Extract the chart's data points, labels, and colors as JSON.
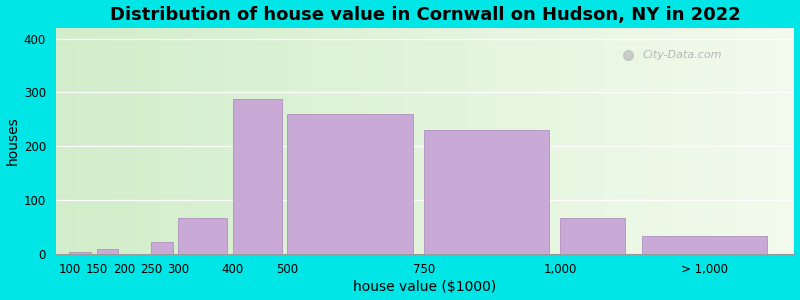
{
  "title": "Distribution of house value in Cornwall on Hudson, NY in 2022",
  "xlabel": "house value ($1000)",
  "ylabel": "houses",
  "bar_lefts": [
    100,
    150,
    200,
    250,
    300,
    400,
    500,
    750,
    1000,
    1150
  ],
  "bar_widths": [
    40,
    40,
    40,
    40,
    90,
    90,
    230,
    230,
    120,
    230
  ],
  "bar_heights": [
    2,
    9,
    0,
    22,
    67,
    287,
    260,
    230,
    67,
    33
  ],
  "bar_color": "#c9aad6",
  "bar_edge_color": "#b090be",
  "ylim": [
    0,
    420
  ],
  "xlim": [
    75,
    1430
  ],
  "yticks": [
    0,
    100,
    200,
    300,
    400
  ],
  "xtick_positions": [
    100,
    150,
    200,
    250,
    300,
    400,
    500,
    750,
    1000,
    1265
  ],
  "xtick_labels": [
    "100",
    "150",
    "200",
    "250",
    "300",
    "400",
    "500",
    "750",
    "1,000",
    "> 1,000"
  ],
  "bg_color_left": "#d4edcb",
  "bg_color_right": "#eef7e8",
  "outer_bg": "#00e5e5",
  "title_fontsize": 13,
  "axis_label_fontsize": 10,
  "tick_fontsize": 8.5,
  "watermark_text": "City-Data.com"
}
